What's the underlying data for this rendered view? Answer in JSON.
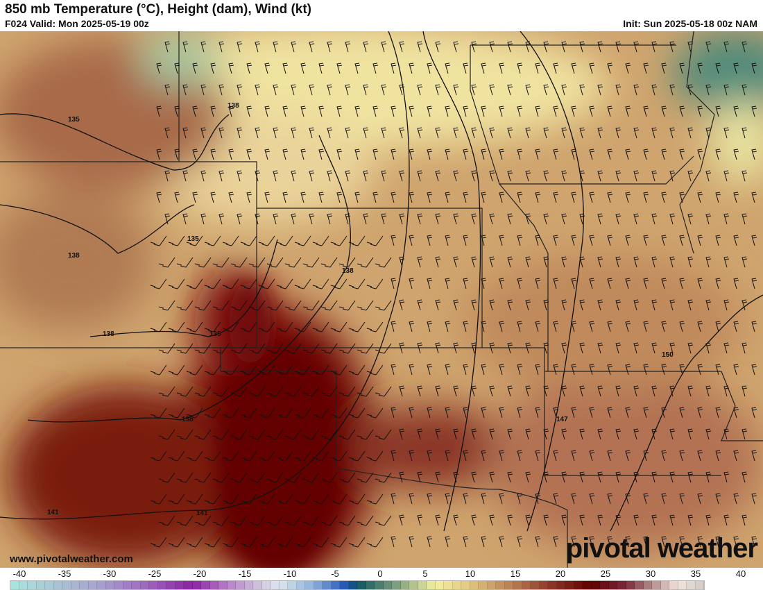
{
  "header": {
    "title": "850 mb Temperature (°C), Height (dam), Wind (kt)",
    "valid": "F024 Valid: Mon 2025-05-19 00z",
    "init": "Init: Sun 2025-05-18 00z NAM"
  },
  "map": {
    "contour_labels": [
      "135",
      "138",
      "135",
      "138",
      "138",
      "135",
      "138",
      "138",
      "141",
      "141",
      "147",
      "150"
    ],
    "watermark_url": "www.pivotalweather.com",
    "brand": "pivotal weather"
  },
  "colorbar": {
    "labels": [
      "-40",
      "-35",
      "-30",
      "-25",
      "-20",
      "-15",
      "-10",
      "-5",
      "0",
      "5",
      "10",
      "15",
      "20",
      "25",
      "30",
      "35",
      "40"
    ],
    "range": [
      -40,
      40
    ],
    "stops": [
      {
        "t": -40,
        "c": "#a8e6df"
      },
      {
        "t": -35,
        "c": "#a9c7d6"
      },
      {
        "t": -30,
        "c": "#a7a3cf"
      },
      {
        "t": -25,
        "c": "#a070c0"
      },
      {
        "t": -19,
        "c": "#8a22a0"
      },
      {
        "t": -15,
        "c": "#b87fc9"
      },
      {
        "t": -11,
        "c": "#d2c8e0"
      },
      {
        "t": -9,
        "c": "#dde8ee"
      },
      {
        "t": -5,
        "c": "#8cb0dc"
      },
      {
        "t": -1,
        "c": "#1a4fb0"
      },
      {
        "t": 0,
        "c": "#0d5560"
      },
      {
        "t": 5,
        "c": "#8aa780"
      },
      {
        "t": 9,
        "c": "#f4f1a0"
      },
      {
        "t": 13,
        "c": "#e3c484"
      },
      {
        "t": 18,
        "c": "#b77d52"
      },
      {
        "t": 22,
        "c": "#8f3b2a"
      },
      {
        "t": 27,
        "c": "#600000"
      },
      {
        "t": 31,
        "c": "#7a2a3a"
      },
      {
        "t": 34,
        "c": "#b48c8a"
      },
      {
        "t": 37,
        "c": "#f2e4dc"
      },
      {
        "t": 40,
        "c": "#cfc9c5"
      }
    ]
  }
}
